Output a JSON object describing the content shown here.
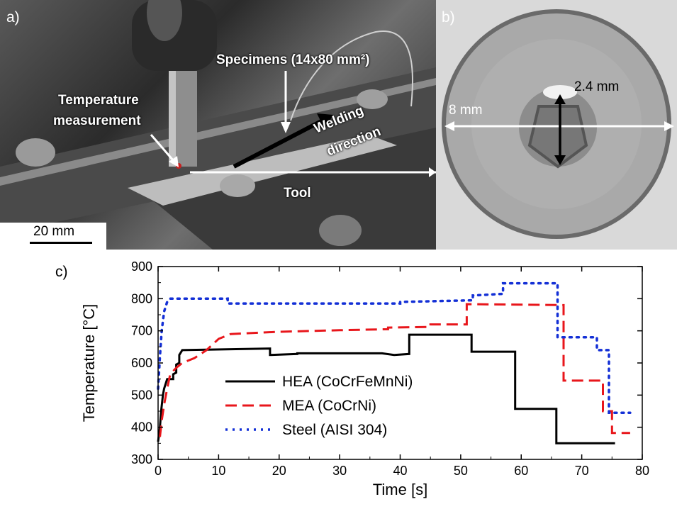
{
  "panel_a": {
    "letter": "a)",
    "label_specimens": "Specimens (14x80 mm²)",
    "label_temperature_line1": "Temperature",
    "label_temperature_line2": "measurement",
    "label_welding_line1": "Welding",
    "label_welding_line2": "direction",
    "label_tool": "Tool",
    "scale_bar": "20 mm"
  },
  "panel_b": {
    "letter": "b)",
    "label_pin_height": "2.4 mm",
    "label_diameter": "8 mm"
  },
  "panel_c": {
    "letter": "c)"
  },
  "chart_data": {
    "type": "line",
    "xlabel": "Time [s]",
    "ylabel": "Temperature [°C]",
    "xlim": [
      0,
      80
    ],
    "ylim": [
      300,
      900
    ],
    "xticks": [
      0,
      10,
      20,
      30,
      40,
      50,
      60,
      70,
      80
    ],
    "yticks": [
      300,
      400,
      500,
      600,
      700,
      800,
      900
    ],
    "legend_position": "center",
    "series": [
      {
        "name": "HEA (CoCrFeMnNi)",
        "color": "#000000",
        "style": "solid",
        "x": [
          0,
          0.3,
          0.5,
          0.8,
          1.0,
          1.5,
          1.5,
          2.5,
          2.5,
          3.0,
          3.0,
          3.5,
          3.5,
          4.0,
          4.0,
          18.5,
          18.5,
          23,
          23,
          37,
          37,
          39,
          39,
          41.5,
          41.5,
          51.8,
          51.8,
          59,
          59,
          65.8,
          65.8,
          75.5
        ],
        "y": [
          355,
          400,
          450,
          500,
          520,
          550,
          550,
          550,
          565,
          570,
          595,
          600,
          625,
          640,
          640,
          645,
          625,
          628,
          630,
          630,
          630,
          625,
          625,
          628,
          688,
          688,
          635,
          635,
          457,
          457,
          350,
          350
        ]
      },
      {
        "name": "MEA (CoCrNi)",
        "color": "#e8161b",
        "style": "dashed",
        "x": [
          0.3,
          0.6,
          1.0,
          1.5,
          2.0,
          3.0,
          4.0,
          6.0,
          8.0,
          10.0,
          12.0,
          20.0,
          30.0,
          38.0,
          38.0,
          45.0,
          45.0,
          51.0,
          51.0,
          67.0,
          67.0,
          73.5,
          73.5,
          75.0,
          75.0,
          78.0
        ],
        "y": [
          370,
          420,
          470,
          520,
          565,
          585,
          600,
          615,
          640,
          675,
          690,
          697,
          702,
          705,
          710,
          712,
          720,
          720,
          783,
          780,
          545,
          545,
          450,
          450,
          382,
          382
        ]
      },
      {
        "name": "Steel (AISI 304)",
        "color": "#1430d6",
        "style": "dotted",
        "x": [
          0,
          0.3,
          0.6,
          1.0,
          1.5,
          2.0,
          11.5,
          11.5,
          40.0,
          40.0,
          52.0,
          52.0,
          57.0,
          57.0,
          66.0,
          66.0,
          72.5,
          72.5,
          74.5,
          74.5,
          78.0
        ],
        "y": [
          520,
          620,
          700,
          760,
          790,
          800,
          800,
          785,
          785,
          790,
          795,
          810,
          815,
          848,
          848,
          680,
          680,
          640,
          640,
          445,
          445
        ]
      }
    ]
  }
}
